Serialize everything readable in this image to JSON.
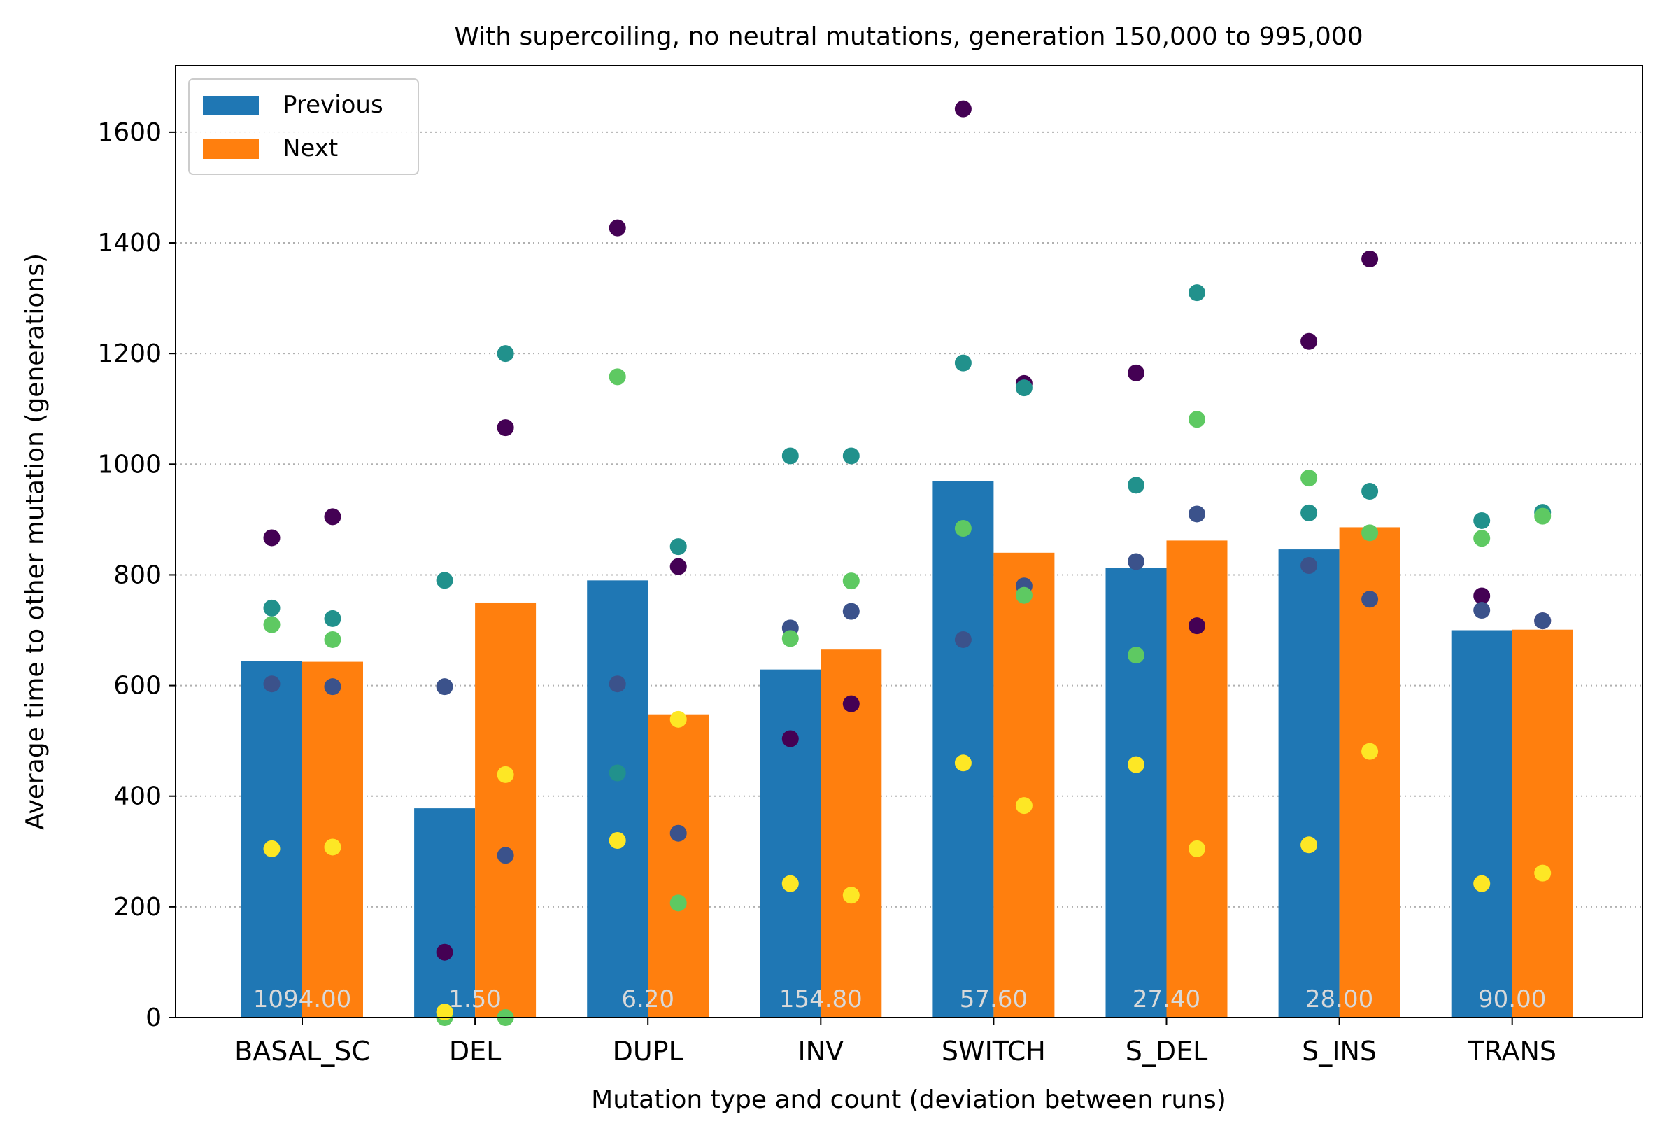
{
  "chart_data": {
    "type": "bar",
    "title": "With supercoiling, no neutral mutations, generation 150,000 to 995,000",
    "xlabel": "Mutation type and count (deviation between runs)",
    "ylabel": "Average time to other mutation (generations)",
    "ylim": [
      0,
      1720
    ],
    "yticks": [
      0,
      200,
      400,
      600,
      800,
      1000,
      1200,
      1400,
      1600
    ],
    "grid": "y-dotted",
    "legend_position": "top-left",
    "categories": [
      "BASAL_SC",
      "DEL",
      "DUPL",
      "INV",
      "SWITCH",
      "S_DEL",
      "S_INS",
      "TRANS"
    ],
    "count_labels": [
      "1094.00",
      "1.50",
      "6.20",
      "154.80",
      "57.60",
      "27.40",
      "28.00",
      "90.00"
    ],
    "colors": {
      "Previous": "#1f77b4",
      "Next": "#ff7f0e",
      "count_label": "#d9d9d9"
    },
    "series": [
      {
        "name": "Previous",
        "values": [
          645,
          378,
          790,
          629,
          970,
          812,
          846,
          700
        ]
      },
      {
        "name": "Next",
        "values": [
          643,
          750,
          548,
          665,
          840,
          862,
          886,
          701
        ]
      }
    ],
    "run_colors": [
      "#440154",
      "#3b528b",
      "#21918c",
      "#5ec962",
      "#fde725"
    ],
    "runs": {
      "Previous": [
        [
          867,
          603,
          740,
          710,
          305
        ],
        [
          118,
          598,
          790,
          0,
          10
        ],
        [
          1427,
          603,
          442,
          1158,
          320
        ],
        [
          504,
          704,
          1015,
          685,
          242
        ],
        [
          1642,
          683,
          1183,
          884,
          460
        ],
        [
          1165,
          824,
          962,
          655,
          457
        ],
        [
          1222,
          817,
          912,
          975,
          312
        ],
        [
          762,
          736,
          898,
          866,
          242
        ]
      ],
      "Next": [
        [
          905,
          598,
          721,
          683,
          308
        ],
        [
          1066,
          293,
          1200,
          0,
          439
        ],
        [
          815,
          333,
          851,
          207,
          539
        ],
        [
          567,
          734,
          1015,
          789,
          221
        ],
        [
          1146,
          780,
          1138,
          763,
          383
        ],
        [
          708,
          910,
          1310,
          1081,
          305
        ],
        [
          1371,
          756,
          951,
          876,
          481
        ],
        [
          717,
          717,
          913,
          906,
          261
        ]
      ]
    }
  }
}
